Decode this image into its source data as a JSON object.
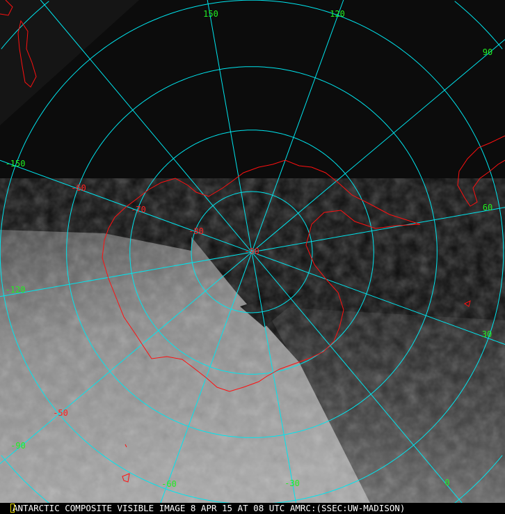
{
  "caption": "ANTARCTIC COMPOSITE VISIBLE IMAGE 8 APR 15 AT 08 UTC AMRC:(SSEC:UW-MADISON)",
  "projection": "polar stereographic, south pole",
  "colors": {
    "graticule": "#00e5ee",
    "coastline": "#ff1010",
    "longitude_labels": "#22ee22",
    "latitude_labels": "#ff2020",
    "caption_text": "#ffffff"
  },
  "graticule": {
    "latitudes": [
      -80,
      -70,
      -60,
      -50,
      -40
    ],
    "longitudes": [
      0,
      30,
      60,
      90,
      120,
      150,
      180,
      -150,
      -120,
      -90,
      -60,
      -30
    ]
  },
  "longitude_labels": [
    "150",
    "120",
    "90",
    "60",
    "30",
    "0",
    "-30",
    "-60",
    "-90",
    "-120",
    "-150"
  ],
  "latitude_labels": [
    "-50",
    "-60",
    "-70",
    "-80",
    "-90"
  ]
}
